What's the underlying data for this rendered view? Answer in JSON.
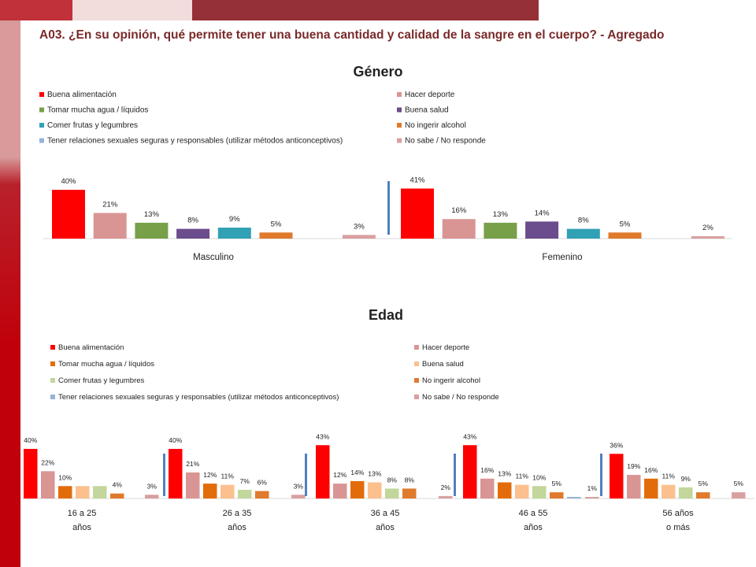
{
  "page": {
    "title": "A03. ¿En su opinión, qué permite tener una buena cantidad y calidad de la sangre en el cuerpo? - Agregado"
  },
  "colors": {
    "topbar": [
      "#c0313a",
      "#f2dcdc",
      "#c0313a",
      "#943036"
    ],
    "sidebar_top": "#d89a9a",
    "sidebar_bottom": "#c0000a",
    "title_text": "#7a2a2a",
    "separator": "#4f81bd"
  },
  "chart_data": [
    {
      "type": "bar",
      "title": "Género",
      "legend": {
        "position": "top",
        "columns": 2
      },
      "categories": [
        "Masculino",
        "Femenino"
      ],
      "series": [
        {
          "name": "Buena alimentación",
          "color": "#ff0000",
          "values": [
            40,
            41
          ]
        },
        {
          "name": "Hacer deporte",
          "color": "#d99594",
          "values": [
            21,
            16
          ]
        },
        {
          "name": "Tomar mucha agua / líquidos",
          "color": "#77a049",
          "values": [
            13,
            13
          ]
        },
        {
          "name": "Buena salud",
          "color": "#6b4c8c",
          "values": [
            8,
            14
          ]
        },
        {
          "name": "Comer frutas y legumbres",
          "color": "#31a1b5",
          "values": [
            9,
            8
          ]
        },
        {
          "name": "No ingerir alcohol",
          "color": "#e07a2c",
          "values": [
            5,
            5
          ]
        },
        {
          "name": "Tener relaciones sexuales seguras y responsables (utilizar métodos anticonceptivos)",
          "color": "#95b3d7",
          "values": [
            null,
            null
          ]
        },
        {
          "name": "No sabe / No responde",
          "color": "#d9a0a0",
          "values": [
            3,
            2
          ]
        }
      ],
      "ylim": [
        0,
        45
      ],
      "grid": false
    },
    {
      "type": "bar",
      "title": "Edad",
      "legend": {
        "position": "top",
        "columns": 2
      },
      "categories": [
        "16 a 25 años",
        "26 a 35 años",
        "36 a 45 años",
        "46 a 55 años",
        "56 años o más"
      ],
      "category_lines": [
        [
          "16 a 25",
          "años"
        ],
        [
          "26 a 35",
          "años"
        ],
        [
          "36 a 45",
          "años"
        ],
        [
          "46 a 55",
          "años"
        ],
        [
          "56 años",
          "o más"
        ]
      ],
      "series": [
        {
          "name": "Buena alimentación",
          "color": "#ff0000",
          "values": [
            40,
            40,
            43,
            43,
            36
          ]
        },
        {
          "name": "Hacer deporte",
          "color": "#d99594",
          "values": [
            22,
            21,
            12,
            16,
            19
          ]
        },
        {
          "name": "Tomar mucha agua / líquidos",
          "color": "#e36c0a",
          "values": [
            10,
            12,
            14,
            13,
            16
          ]
        },
        {
          "name": "Buena salud",
          "color": "#fbc08e",
          "values": [
            10,
            11,
            13,
            11,
            11
          ]
        },
        {
          "name": "Comer frutas y legumbres",
          "color": "#c3d69b",
          "values": [
            10,
            7,
            8,
            10,
            9
          ]
        },
        {
          "name": "No ingerir alcohol",
          "color": "#e07a2c",
          "values": [
            4,
            6,
            8,
            5,
            5
          ]
        },
        {
          "name": "Tener relaciones sexuales seguras y responsables (utilizar métodos anticonceptivos)",
          "color": "#95b3d7",
          "values": [
            null,
            null,
            null,
            1,
            null
          ]
        },
        {
          "name": "No sabe / No responde",
          "color": "#d9a0a0",
          "values": [
            3,
            3,
            2,
            1,
            5
          ]
        }
      ],
      "data_labels": [
        [
          "40%",
          "22%",
          "10%",
          null,
          null,
          "4%",
          null,
          "3%"
        ],
        [
          "40%",
          "21%",
          "12%",
          "11%",
          "7%",
          "6%",
          null,
          "3%"
        ],
        [
          "43%",
          "12%",
          "14%",
          "13%",
          "8%",
          "8%",
          null,
          "2%"
        ],
        [
          "43%",
          "16%",
          "13%",
          "11%",
          "10%",
          "5%",
          null,
          "1%"
        ],
        [
          "36%",
          "19%",
          "16%",
          "11%",
          "9%",
          "5%",
          null,
          "5%"
        ]
      ],
      "ylim": [
        0,
        45
      ],
      "grid": false
    }
  ]
}
